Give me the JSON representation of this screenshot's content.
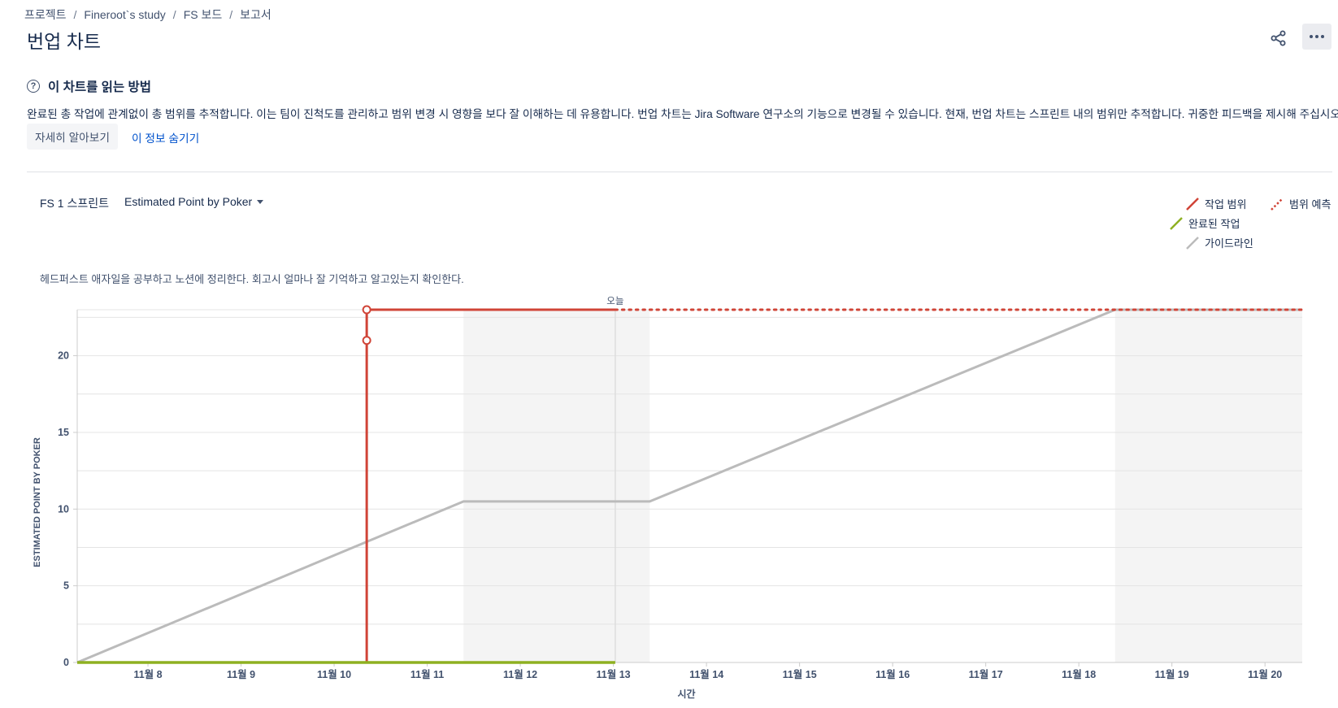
{
  "breadcrumb": [
    "프로젝트",
    "Fineroot`s study",
    "FS 보드",
    "보고서"
  ],
  "page_title": "번업 차트",
  "info": {
    "heading": "이 차트를 읽는 방법",
    "body": "완료된 총 작업에 관계없이 총 범위를 추적합니다. 이는 팀이 진척도를 관리하고 범위 변경 시 영향을 보다 잘 이해하는 데 유용합니다. 번업 차트는 Jira Software 연구소의 기능으로 변경될 수 있습니다. 현재, 번업 차트는 스프린트 내의 범위만 추적합니다. 귀중한 피드백을 제시해 주십시오.",
    "learn_more": "자세히 알아보기",
    "hide": "이 정보 숨기기"
  },
  "toolbar": {
    "sprint": "FS 1 스프린트",
    "estimate": "Estimated Point by Poker"
  },
  "legend": {
    "scope": "작업 범위",
    "forecast": "범위 예측",
    "completed": "완료된 작업",
    "guideline": "가이드라인"
  },
  "sprint_goal": "헤드퍼스트 애자일을 공부하고 노션에 정리한다. 회고시 얼마나 잘 기억하고 알고있는지 확인한다.",
  "icons": {
    "share": "share-icon",
    "more": "more-icon",
    "help": "help-icon"
  },
  "colors": {
    "scope": "#d04437",
    "completed": "#8eb021",
    "guideline": "#bbbbbb",
    "nonworking": "#f4f4f4",
    "link": "#0052cc"
  },
  "chart_data": {
    "type": "line",
    "xlabel": "시간",
    "ylabel": "ESTIMATED POINT BY POKER",
    "xlim": [
      "11월 7일 09:00",
      "11월 20일 13:00"
    ],
    "x_day_index_domain": [
      7.24,
      20.4
    ],
    "ylim": [
      0,
      23
    ],
    "x_ticks": [
      8,
      9,
      10,
      11,
      12,
      13,
      14,
      15,
      16,
      17,
      18,
      19,
      20
    ],
    "x_tick_labels": [
      "11월 8",
      "11월 9",
      "11월 10",
      "11월 11",
      "11월 12",
      "11월 13",
      "11월 14",
      "11월 15",
      "11월 16",
      "11월 17",
      "11월 18",
      "11월 19",
      "11월 20"
    ],
    "y_ticks": [
      0,
      5,
      10,
      15,
      20
    ],
    "today": 13.02,
    "today_label": "오늘",
    "nonworking": [
      [
        11.39,
        13.39
      ],
      [
        18.39,
        20.4
      ]
    ],
    "series": [
      {
        "name": "작업 범위",
        "points": [
          [
            7.24,
            0
          ],
          [
            10.35,
            0
          ],
          [
            10.35,
            21
          ],
          [
            10.35,
            23
          ],
          [
            13.02,
            23
          ]
        ],
        "markers": [
          [
            10.35,
            21
          ],
          [
            10.35,
            23
          ]
        ]
      },
      {
        "name": "범위 예측",
        "points": [
          [
            13.02,
            23
          ],
          [
            20.4,
            23
          ]
        ]
      },
      {
        "name": "완료된 작업",
        "points": [
          [
            7.24,
            0
          ],
          [
            13.02,
            0
          ]
        ]
      },
      {
        "name": "가이드라인",
        "points": [
          [
            7.24,
            0
          ],
          [
            11.39,
            10.5
          ],
          [
            13.39,
            10.5
          ],
          [
            18.39,
            23
          ],
          [
            20.4,
            23
          ]
        ]
      }
    ]
  }
}
